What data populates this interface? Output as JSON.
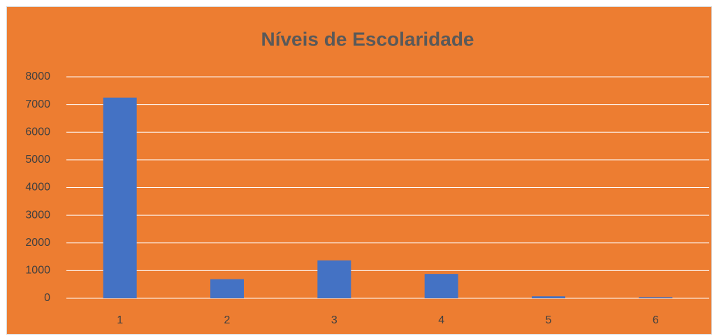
{
  "chart_data": {
    "type": "bar",
    "title": "Níveis de Escolaridade",
    "categories": [
      "1",
      "2",
      "3",
      "4",
      "5",
      "6"
    ],
    "values": [
      7250,
      690,
      1370,
      880,
      70,
      40
    ],
    "color": "#4472c4",
    "ylim": [
      0,
      8000
    ],
    "yticks": [
      0,
      1000,
      2000,
      3000,
      4000,
      5000,
      6000,
      7000,
      8000
    ],
    "grid": true
  }
}
